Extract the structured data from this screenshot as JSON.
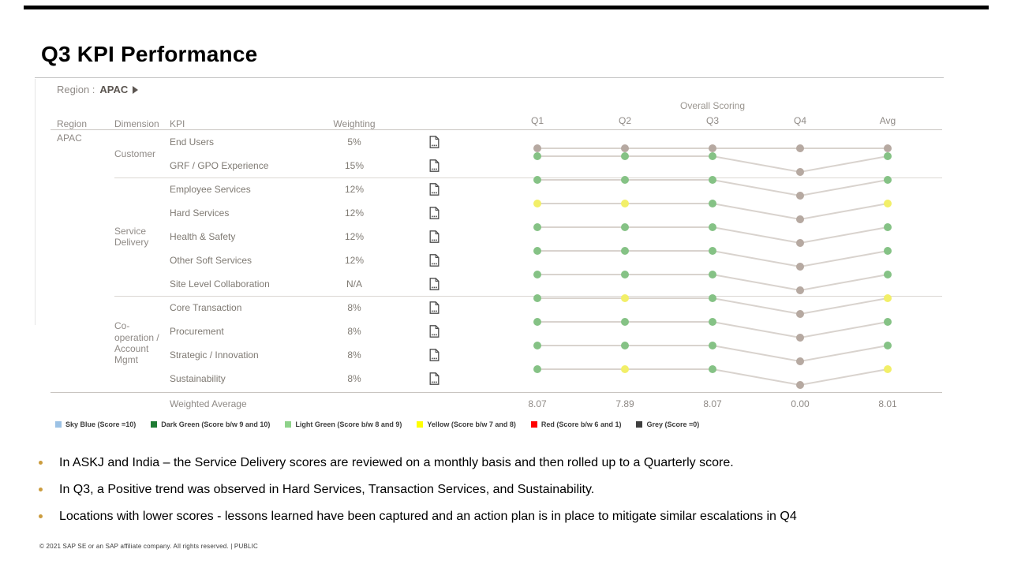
{
  "slide": {
    "title": "Q3 KPI Performance",
    "bullet_color": "#cb9c3e",
    "bullets": [
      "In ASKJ and India – the Service Delivery scores are reviewed on a monthly basis and then rolled up to a Quarterly score.",
      "In Q3, a Positive trend was observed in Hard Services, Transaction Services, and Sustainability.",
      "Locations with lower scores - lessons learned have been captured and an action plan is in place to mitigate similar escalations in Q4"
    ],
    "footer": "© 2021 SAP SE or an SAP affiliate company. All rights reserved.  |  PUBLIC"
  },
  "panel": {
    "region_label": "Region :",
    "region_value": "APAC",
    "overall_scoring_label": "Overall Scoring",
    "col_region": "Region",
    "col_dimension": "Dimension",
    "col_kpi": "KPI",
    "col_weighting": "Weighting",
    "quarter_columns": [
      "Q1",
      "Q2",
      "Q3",
      "Q4",
      "Avg"
    ],
    "region_cell": "APAC",
    "weighted_average_label": "Weighted Average"
  },
  "chart_data": {
    "type": "table",
    "title": "Q3 KPI Performance - Overall Scoring by KPI (Region APAC)",
    "x": [
      "Q1",
      "Q2",
      "Q3",
      "Q4",
      "Avg"
    ],
    "dot_colors": {
      "green": "#85c285",
      "yellow": "#f2ef68",
      "taupe": "#b6a9a1",
      "line": "#d9d3ce"
    },
    "groups": [
      {
        "dimension": "Customer",
        "rows": [
          {
            "kpi": "End Users",
            "weighting": "5%",
            "points": [
              "taupe:low",
              "taupe:low",
              "taupe:low",
              "taupe:low",
              "taupe:low"
            ]
          },
          {
            "kpi": "GRF / GPO Experience",
            "weighting": "15%",
            "points": [
              "green:high",
              "green:high",
              "green:high",
              "taupe:low",
              "green:high"
            ]
          }
        ]
      },
      {
        "dimension": "Service Delivery",
        "rows": [
          {
            "kpi": "Employee Services",
            "weighting": "12%",
            "points": [
              "green:high",
              "green:high",
              "green:high",
              "taupe:low",
              "green:high"
            ]
          },
          {
            "kpi": "Hard Services",
            "weighting": "12%",
            "points": [
              "yellow:high",
              "yellow:high",
              "green:high",
              "taupe:low",
              "yellow:high"
            ]
          },
          {
            "kpi": "Health & Safety",
            "weighting": "12%",
            "points": [
              "green:high",
              "green:high",
              "green:high",
              "taupe:low",
              "green:high"
            ]
          },
          {
            "kpi": "Other Soft Services",
            "weighting": "12%",
            "points": [
              "green:high",
              "green:high",
              "green:high",
              "taupe:low",
              "green:high"
            ]
          },
          {
            "kpi": "Site Level Collaboration",
            "weighting": "N/A",
            "points": [
              "green:high",
              "green:high",
              "green:high",
              "taupe:low",
              "green:high"
            ]
          }
        ]
      },
      {
        "dimension": "Co-operation / Account Mgmt",
        "rows": [
          {
            "kpi": "Core Transaction",
            "weighting": "8%",
            "points": [
              "green:high",
              "yellow:high",
              "green:high",
              "taupe:low",
              "yellow:high"
            ]
          },
          {
            "kpi": "Procurement",
            "weighting": "8%",
            "points": [
              "green:high",
              "green:high",
              "green:high",
              "taupe:low",
              "green:high"
            ]
          },
          {
            "kpi": "Strategic / Innovation",
            "weighting": "8%",
            "points": [
              "green:high",
              "green:high",
              "green:high",
              "taupe:low",
              "green:high"
            ]
          },
          {
            "kpi": "Sustainability",
            "weighting": "8%",
            "points": [
              "green:high",
              "yellow:high",
              "green:high",
              "taupe:low",
              "yellow:high"
            ]
          }
        ]
      }
    ],
    "weighted_average": {
      "label": "Weighted Average",
      "values": [
        "8.07",
        "7.89",
        "8.07",
        "0.00",
        "8.01"
      ]
    },
    "legend": [
      {
        "color": "#9cc2e5",
        "label": "Sky Blue (Score =10)"
      },
      {
        "color": "#1e7b33",
        "label": "Dark Green (Score b/w 9 and 10)"
      },
      {
        "color": "#8ed28a",
        "label": "Light Green (Score b/w 8 and 9)"
      },
      {
        "color": "#ffff00",
        "label": "Yellow (Score b/w 7 and 8)"
      },
      {
        "color": "#ff0000",
        "label": "Red (Score b/w 6 and 1)"
      },
      {
        "color": "#3f3f3f",
        "label": "Grey (Score =0)"
      }
    ],
    "legend_position": "bottom",
    "grid": false
  }
}
